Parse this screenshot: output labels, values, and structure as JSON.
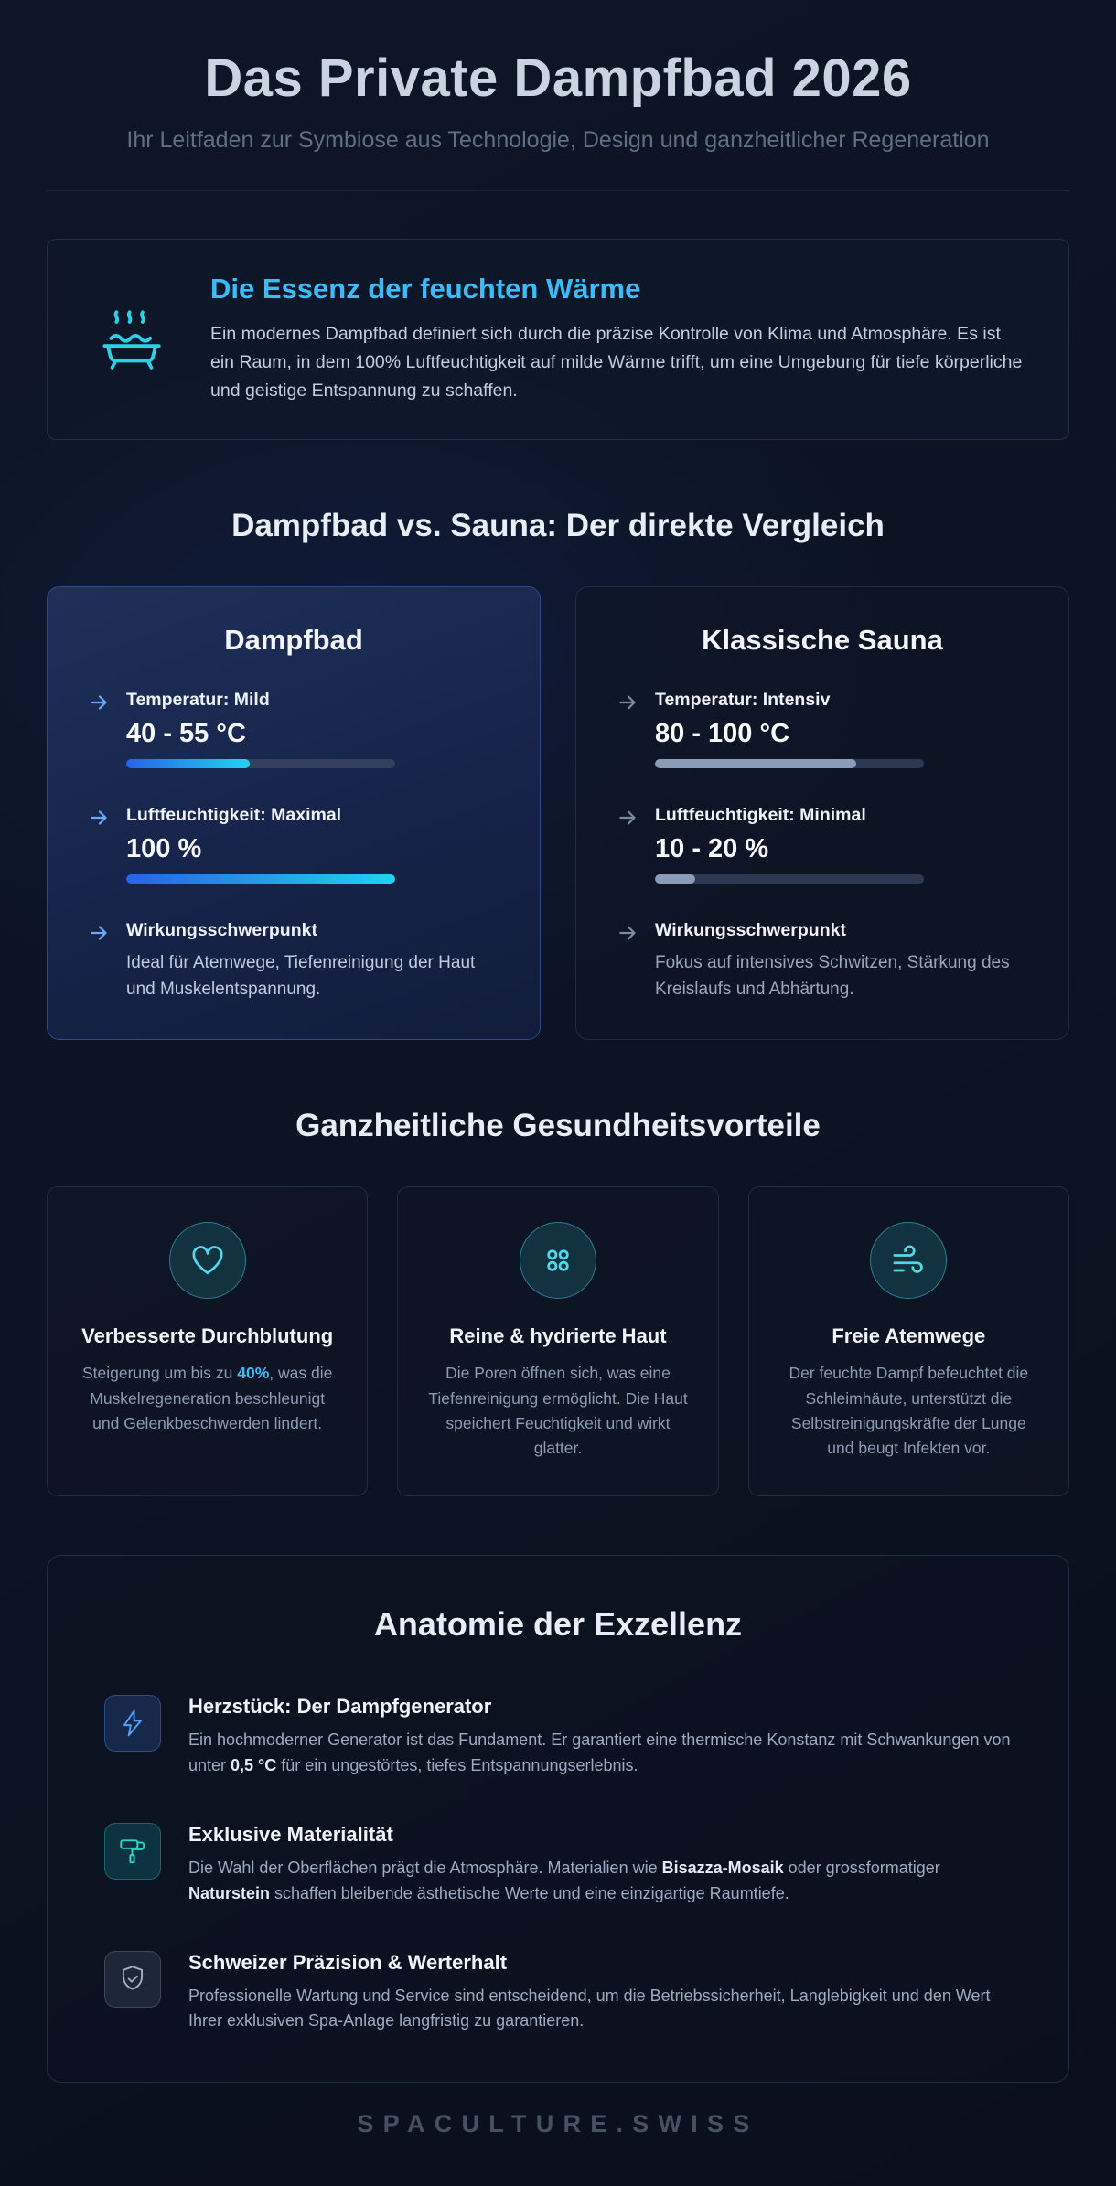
{
  "page": {
    "title": "Das Private Dampfbad 2026",
    "subtitle": "Ihr Leitfaden zur Symbiose aus Technologie, Design und ganzheitlicher Regeneration",
    "footer": "SPACULTURE.SWISS"
  },
  "colors": {
    "accent_cyan": "#22d3ee",
    "accent_blue": "#38bdf8",
    "background": "#0a101d",
    "card_border": "#202c42",
    "highlight_card_border": "#31498a"
  },
  "intro": {
    "icon": "steam-bath-icon",
    "heading": "Die Essenz der feuchten Wärme",
    "body": "Ein modernes Dampfbad definiert sich durch die präzise Kontrolle von Klima und Atmosphäre. Es ist ein Raum, in dem 100% Luftfeuchtigkeit auf milde Wärme trifft, um eine Umgebung für tiefe körperliche und geistige Entspannung zu schaffen."
  },
  "comparison": {
    "heading": "Dampfbad vs. Sauna: Der direkte Vergleich",
    "cards": [
      {
        "title": "Dampfbad",
        "rows": [
          {
            "label": "Temperatur: Mild",
            "value": "40 - 55 °C",
            "track_pct": 72,
            "fill_pct": 46
          },
          {
            "label": "Luftfeuchtigkeit: Maximal",
            "value": "100 %",
            "track_pct": 72,
            "fill_pct": 100
          },
          {
            "label": "Wirkungsschwerpunkt",
            "text": "Ideal für Atemwege, Tiefenreinigung der Haut und Muskelentspannung."
          }
        ]
      },
      {
        "title": "Klassische Sauna",
        "rows": [
          {
            "label": "Temperatur: Intensiv",
            "value": "80 - 100 °C",
            "track_pct": 72,
            "fill_pct": 75
          },
          {
            "label": "Luftfeuchtigkeit: Minimal",
            "value": "10 - 20 %",
            "track_pct": 72,
            "fill_pct": 15
          },
          {
            "label": "Wirkungsschwerpunkt",
            "text": "Fokus auf intensives Schwitzen, Stärkung des Kreislaufs und Abhärtung."
          }
        ]
      }
    ]
  },
  "benefits": {
    "heading": "Ganzheitliche Gesundheitsvorteile",
    "cards": [
      {
        "icon": "heart-icon",
        "title": "Verbesserte Durchblutung",
        "desc": [
          {
            "t": "Steigerung um bis zu "
          },
          {
            "t": "40%",
            "b": true,
            "c": "hl"
          },
          {
            "t": ", was die Muskelregeneration beschleunigt und Gelenkbeschwerden lindert."
          }
        ]
      },
      {
        "icon": "pores-icon",
        "title": "Reine & hydrierte Haut",
        "desc": [
          {
            "t": "Die Poren öffnen sich, was eine Tiefenreinigung ermöglicht. Die Haut speichert Feuchtigkeit und wirkt glatter."
          }
        ]
      },
      {
        "icon": "breath-icon",
        "title": "Freie Atemwege",
        "desc": [
          {
            "t": "Der feuchte Dampf befeuchtet die Schleimhäute, unterstützt die Selbstreinigungskräfte der Lunge und beugt Infekten vor."
          }
        ]
      }
    ]
  },
  "anatomy": {
    "heading": "Anatomie der Exzellenz",
    "items": [
      {
        "icon": "bolt-icon",
        "title": "Herzstück: Der Dampfgenerator",
        "desc": [
          {
            "t": "Ein hochmoderner Generator ist das Fundament. Er garantiert eine thermische Konstanz mit Schwankungen von unter "
          },
          {
            "t": "0,5 °C",
            "b": true
          },
          {
            "t": " für ein ungestörtes, tiefes Entspannungserlebnis."
          }
        ]
      },
      {
        "icon": "paint-roller-icon",
        "title": "Exklusive Materialität",
        "desc": [
          {
            "t": "Die Wahl der Oberflächen prägt die Atmosphäre. Materialien wie "
          },
          {
            "t": "Bisazza-Mosaik",
            "b": true
          },
          {
            "t": " oder grossformatiger "
          },
          {
            "t": "Naturstein",
            "b": true
          },
          {
            "t": " schaffen bleibende ästhetische Werte und eine einzigartige Raumtiefe."
          }
        ]
      },
      {
        "icon": "shield-check-icon",
        "title": "Schweizer Präzision & Werterhalt",
        "desc": [
          {
            "t": "Professionelle Wartung und Service sind entscheidend, um die Betriebssicherheit, Langlebigkeit und den Wert Ihrer exklusiven Spa-Anlage langfristig zu garantieren."
          }
        ]
      }
    ]
  }
}
